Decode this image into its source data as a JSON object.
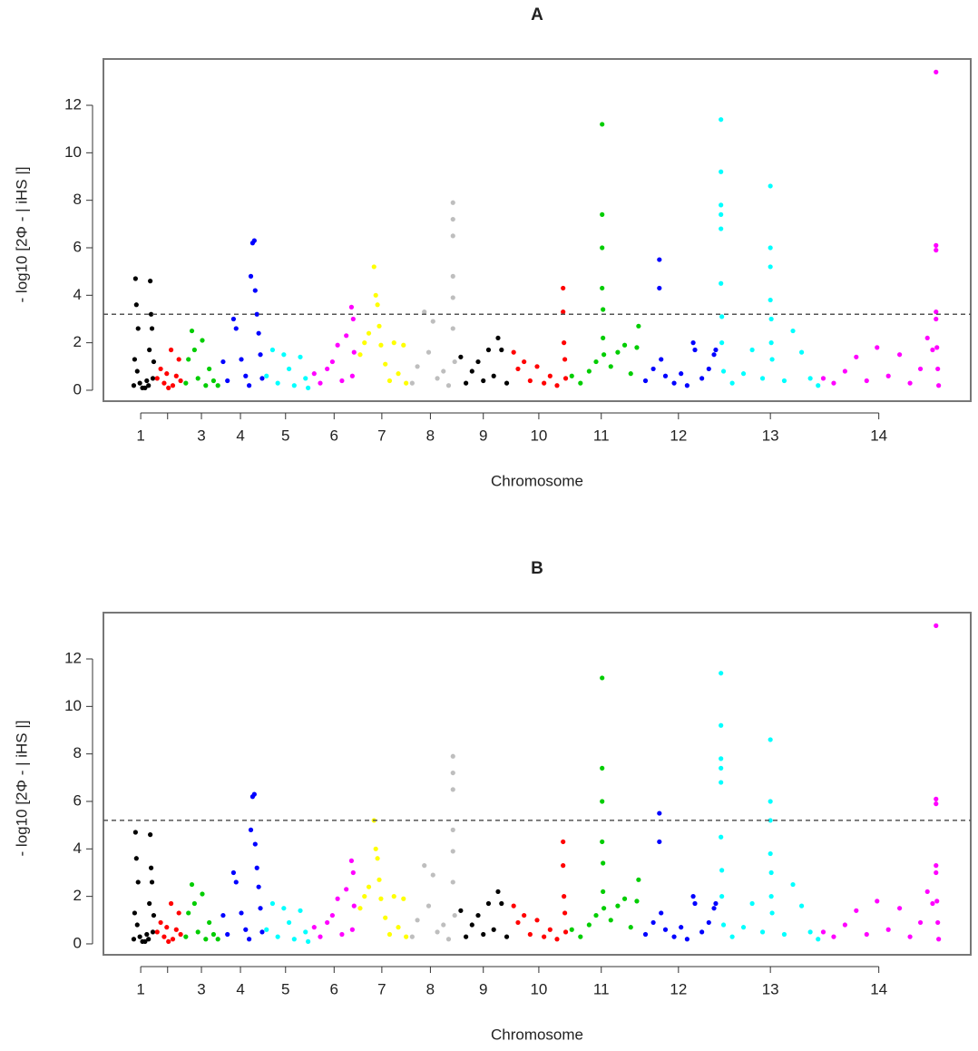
{
  "chart_data": [
    {
      "type": "scatter",
      "title": "A",
      "xlabel": "Chromosome",
      "ylabel": "- log10 [2Φ - | iHS |]",
      "xlim": [
        0,
        100
      ],
      "ylim": [
        -0.46,
        13.95
      ],
      "yticks": [
        0,
        2,
        4,
        6,
        8,
        10,
        12
      ],
      "threshold": 3.2,
      "xticks": [
        {
          "value": 4.3,
          "label": "1"
        },
        {
          "value": 7.4,
          "label": null
        },
        {
          "value": 11.3,
          "label": "3"
        },
        {
          "value": 15.8,
          "label": "4"
        },
        {
          "value": 21.0,
          "label": "5"
        },
        {
          "value": 26.6,
          "label": "6"
        },
        {
          "value": 32.1,
          "label": "7"
        },
        {
          "value": 37.7,
          "label": "8"
        },
        {
          "value": 43.8,
          "label": "9"
        },
        {
          "value": 50.2,
          "label": "10"
        },
        {
          "value": 57.4,
          "label": "11"
        },
        {
          "value": 66.3,
          "label": "12"
        },
        {
          "value": 76.9,
          "label": "13"
        },
        {
          "value": 89.4,
          "label": "14"
        }
      ],
      "series": [
        {
          "color": "#000000",
          "x": [
            3.5,
            3.6,
            3.7,
            3.8,
            3.9,
            4.0,
            4.2,
            4.5,
            5.0,
            5.3,
            5.4,
            5.5,
            5.6,
            5.7,
            5.8,
            5.2,
            4.8
          ],
          "values": [
            0.2,
            1.3,
            4.7,
            3.6,
            0.8,
            2.6,
            0.3,
            0.1,
            0.4,
            1.7,
            4.6,
            3.2,
            2.6,
            0.5,
            1.2,
            0.2,
            0.1
          ]
        },
        {
          "color": "#ff0000",
          "x": [
            6.2,
            6.6,
            7.0,
            7.3,
            7.8,
            8.0,
            8.4,
            8.7,
            8.9,
            7.5
          ],
          "values": [
            0.5,
            0.9,
            0.3,
            0.7,
            1.7,
            0.2,
            0.6,
            1.3,
            0.4,
            0.1
          ]
        },
        {
          "color": "#00cd00",
          "x": [
            9.5,
            9.8,
            10.2,
            10.5,
            10.9,
            11.4,
            11.8,
            12.2,
            12.7,
            13.2
          ],
          "values": [
            0.3,
            1.3,
            2.5,
            1.7,
            0.5,
            2.1,
            0.2,
            0.9,
            0.4,
            0.2
          ]
        },
        {
          "color": "#0000ff",
          "x": [
            13.8,
            14.3,
            15.0,
            15.3,
            15.9,
            16.4,
            17.0,
            17.2,
            17.4,
            17.5,
            17.7,
            17.9,
            18.1,
            18.3,
            16.8
          ],
          "values": [
            1.2,
            0.4,
            3.0,
            2.6,
            1.3,
            0.6,
            4.8,
            6.2,
            6.3,
            4.2,
            3.2,
            2.4,
            1.5,
            0.5,
            0.2
          ]
        },
        {
          "color": "#00ffff",
          "x": [
            18.8,
            19.5,
            20.1,
            20.8,
            21.4,
            22.0,
            22.7,
            23.3,
            23.6
          ],
          "values": [
            0.6,
            1.7,
            0.3,
            1.5,
            0.9,
            0.2,
            1.4,
            0.5,
            0.1
          ]
        },
        {
          "color": "#ff00ff",
          "x": [
            24.3,
            25.0,
            25.8,
            26.4,
            27.0,
            27.5,
            28.0,
            28.6,
            28.8,
            28.9,
            28.7
          ],
          "values": [
            0.7,
            0.3,
            0.9,
            1.2,
            1.9,
            0.4,
            2.3,
            3.5,
            3.0,
            1.6,
            0.6
          ]
        },
        {
          "color": "#ffff00",
          "x": [
            29.6,
            30.1,
            30.6,
            31.2,
            31.4,
            31.6,
            31.8,
            32.0,
            32.5,
            33.0,
            33.5,
            34.0,
            34.6,
            34.9
          ],
          "values": [
            1.5,
            2.0,
            2.4,
            5.2,
            4.0,
            3.6,
            2.7,
            1.9,
            1.1,
            0.4,
            2.0,
            0.7,
            1.9,
            0.3
          ]
        },
        {
          "color": "#bebebe",
          "x": [
            35.6,
            36.2,
            37.0,
            37.5,
            38.0,
            38.5,
            39.2,
            40.3,
            40.3,
            40.3,
            40.3,
            40.3,
            40.3,
            40.5,
            39.8
          ],
          "values": [
            0.3,
            1.0,
            3.3,
            1.6,
            2.9,
            0.5,
            0.8,
            7.9,
            7.2,
            6.5,
            4.8,
            3.9,
            2.6,
            1.2,
            0.2
          ]
        },
        {
          "color": "#000000",
          "x": [
            41.2,
            41.8,
            42.5,
            43.2,
            43.8,
            44.4,
            45.0,
            45.5,
            45.9,
            46.5
          ],
          "values": [
            1.4,
            0.3,
            0.8,
            1.2,
            0.4,
            1.7,
            0.6,
            2.2,
            1.7,
            0.3
          ]
        },
        {
          "color": "#ff0000",
          "x": [
            47.3,
            47.8,
            48.5,
            49.2,
            50.0,
            50.8,
            51.5,
            52.3,
            53.0,
            53.0,
            53.1,
            53.2,
            53.3
          ],
          "values": [
            1.6,
            0.9,
            1.2,
            0.4,
            1.0,
            0.3,
            0.6,
            0.2,
            4.3,
            3.3,
            2.0,
            1.3,
            0.5
          ]
        },
        {
          "color": "#00cd00",
          "x": [
            54.0,
            55.0,
            56.0,
            56.8,
            57.5,
            57.5,
            57.5,
            57.5,
            57.6,
            57.6,
            57.7,
            58.5,
            59.3,
            60.1,
            60.8,
            61.7,
            61.5
          ],
          "values": [
            0.6,
            0.3,
            0.8,
            1.2,
            11.2,
            7.4,
            6.0,
            4.3,
            3.4,
            2.2,
            1.5,
            1.0,
            1.6,
            1.9,
            0.7,
            2.7,
            1.8
          ]
        },
        {
          "color": "#0000ff",
          "x": [
            62.5,
            63.4,
            64.1,
            64.1,
            64.3,
            64.8,
            65.8,
            66.6,
            67.3,
            68.0,
            68.2,
            69.0,
            69.8,
            70.6,
            70.4
          ],
          "values": [
            0.4,
            0.9,
            5.5,
            4.3,
            1.3,
            0.6,
            0.3,
            0.7,
            0.2,
            2.0,
            1.7,
            0.5,
            0.9,
            1.7,
            1.5
          ]
        },
        {
          "color": "#00ffff",
          "x": [
            71.2,
            71.2,
            71.2,
            71.2,
            71.2,
            71.2,
            71.3,
            71.3,
            71.5,
            72.5,
            73.8,
            74.8,
            76.0,
            76.9,
            76.9,
            76.9,
            76.9,
            77.0,
            77.0,
            77.1,
            78.5,
            79.5,
            80.5,
            81.5,
            82.4
          ],
          "values": [
            11.4,
            9.2,
            7.8,
            7.4,
            6.8,
            4.5,
            3.1,
            2.0,
            0.8,
            0.3,
            0.7,
            1.7,
            0.5,
            8.6,
            6.0,
            5.2,
            3.8,
            3.0,
            2.0,
            1.3,
            0.4,
            2.5,
            1.6,
            0.5,
            0.2
          ]
        },
        {
          "color": "#ff00ff",
          "x": [
            83.0,
            84.2,
            85.5,
            86.8,
            88.0,
            89.2,
            90.5,
            91.8,
            93.0,
            94.2,
            95.0,
            95.6,
            96.0,
            96.0,
            96.0,
            96.0,
            96.0,
            96.1,
            96.2,
            96.3
          ],
          "values": [
            0.5,
            0.3,
            0.8,
            1.4,
            0.4,
            1.8,
            0.6,
            1.5,
            0.3,
            0.9,
            2.2,
            1.7,
            13.4,
            6.1,
            5.9,
            3.3,
            3.0,
            1.8,
            0.9,
            0.2
          ]
        }
      ]
    },
    {
      "type": "scatter",
      "title": "B",
      "xlabel": "Chromosome",
      "ylabel": "- log10 [2Φ - | iHS |]",
      "xlim": [
        0,
        100
      ],
      "ylim": [
        -0.46,
        13.95
      ],
      "yticks": [
        0,
        2,
        4,
        6,
        8,
        10,
        12
      ],
      "threshold": 5.2,
      "xticks": [
        {
          "value": 4.3,
          "label": "1"
        },
        {
          "value": 7.4,
          "label": null
        },
        {
          "value": 11.3,
          "label": "3"
        },
        {
          "value": 15.8,
          "label": "4"
        },
        {
          "value": 21.0,
          "label": "5"
        },
        {
          "value": 26.6,
          "label": "6"
        },
        {
          "value": 32.1,
          "label": "7"
        },
        {
          "value": 37.7,
          "label": "8"
        },
        {
          "value": 43.8,
          "label": "9"
        },
        {
          "value": 50.2,
          "label": "10"
        },
        {
          "value": 57.4,
          "label": "11"
        },
        {
          "value": 66.3,
          "label": "12"
        },
        {
          "value": 76.9,
          "label": "13"
        },
        {
          "value": 89.4,
          "label": "14"
        }
      ],
      "series": [
        {
          "color": "#000000",
          "x": [
            3.5,
            3.6,
            3.7,
            3.8,
            3.9,
            4.0,
            4.2,
            4.5,
            5.0,
            5.3,
            5.4,
            5.5,
            5.6,
            5.7,
            5.8,
            5.2,
            4.8
          ],
          "values": [
            0.2,
            1.3,
            4.7,
            3.6,
            0.8,
            2.6,
            0.3,
            0.1,
            0.4,
            1.7,
            4.6,
            3.2,
            2.6,
            0.5,
            1.2,
            0.2,
            0.1
          ]
        },
        {
          "color": "#ff0000",
          "x": [
            6.2,
            6.6,
            7.0,
            7.3,
            7.8,
            8.0,
            8.4,
            8.7,
            8.9,
            7.5
          ],
          "values": [
            0.5,
            0.9,
            0.3,
            0.7,
            1.7,
            0.2,
            0.6,
            1.3,
            0.4,
            0.1
          ]
        },
        {
          "color": "#00cd00",
          "x": [
            9.5,
            9.8,
            10.2,
            10.5,
            10.9,
            11.4,
            11.8,
            12.2,
            12.7,
            13.2
          ],
          "values": [
            0.3,
            1.3,
            2.5,
            1.7,
            0.5,
            2.1,
            0.2,
            0.9,
            0.4,
            0.2
          ]
        },
        {
          "color": "#0000ff",
          "x": [
            13.8,
            14.3,
            15.0,
            15.3,
            15.9,
            16.4,
            17.0,
            17.2,
            17.4,
            17.5,
            17.7,
            17.9,
            18.1,
            18.3,
            16.8
          ],
          "values": [
            1.2,
            0.4,
            3.0,
            2.6,
            1.3,
            0.6,
            4.8,
            6.2,
            6.3,
            4.2,
            3.2,
            2.4,
            1.5,
            0.5,
            0.2
          ]
        },
        {
          "color": "#00ffff",
          "x": [
            18.8,
            19.5,
            20.1,
            20.8,
            21.4,
            22.0,
            22.7,
            23.3,
            23.6
          ],
          "values": [
            0.6,
            1.7,
            0.3,
            1.5,
            0.9,
            0.2,
            1.4,
            0.5,
            0.1
          ]
        },
        {
          "color": "#ff00ff",
          "x": [
            24.3,
            25.0,
            25.8,
            26.4,
            27.0,
            27.5,
            28.0,
            28.6,
            28.8,
            28.9,
            28.7
          ],
          "values": [
            0.7,
            0.3,
            0.9,
            1.2,
            1.9,
            0.4,
            2.3,
            3.5,
            3.0,
            1.6,
            0.6
          ]
        },
        {
          "color": "#ffff00",
          "x": [
            29.6,
            30.1,
            30.6,
            31.2,
            31.4,
            31.6,
            31.8,
            32.0,
            32.5,
            33.0,
            33.5,
            34.0,
            34.6,
            34.9
          ],
          "values": [
            1.5,
            2.0,
            2.4,
            5.2,
            4.0,
            3.6,
            2.7,
            1.9,
            1.1,
            0.4,
            2.0,
            0.7,
            1.9,
            0.3
          ]
        },
        {
          "color": "#bebebe",
          "x": [
            35.6,
            36.2,
            37.0,
            37.5,
            38.0,
            38.5,
            39.2,
            40.3,
            40.3,
            40.3,
            40.3,
            40.3,
            40.3,
            40.5,
            39.8
          ],
          "values": [
            0.3,
            1.0,
            3.3,
            1.6,
            2.9,
            0.5,
            0.8,
            7.9,
            7.2,
            6.5,
            4.8,
            3.9,
            2.6,
            1.2,
            0.2
          ]
        },
        {
          "color": "#000000",
          "x": [
            41.2,
            41.8,
            42.5,
            43.2,
            43.8,
            44.4,
            45.0,
            45.5,
            45.9,
            46.5
          ],
          "values": [
            1.4,
            0.3,
            0.8,
            1.2,
            0.4,
            1.7,
            0.6,
            2.2,
            1.7,
            0.3
          ]
        },
        {
          "color": "#ff0000",
          "x": [
            47.3,
            47.8,
            48.5,
            49.2,
            50.0,
            50.8,
            51.5,
            52.3,
            53.0,
            53.0,
            53.1,
            53.2,
            53.3
          ],
          "values": [
            1.6,
            0.9,
            1.2,
            0.4,
            1.0,
            0.3,
            0.6,
            0.2,
            4.3,
            3.3,
            2.0,
            1.3,
            0.5
          ]
        },
        {
          "color": "#00cd00",
          "x": [
            54.0,
            55.0,
            56.0,
            56.8,
            57.5,
            57.5,
            57.5,
            57.5,
            57.6,
            57.6,
            57.7,
            58.5,
            59.3,
            60.1,
            60.8,
            61.7,
            61.5
          ],
          "values": [
            0.6,
            0.3,
            0.8,
            1.2,
            11.2,
            7.4,
            6.0,
            4.3,
            3.4,
            2.2,
            1.5,
            1.0,
            1.6,
            1.9,
            0.7,
            2.7,
            1.8
          ]
        },
        {
          "color": "#0000ff",
          "x": [
            62.5,
            63.4,
            64.1,
            64.1,
            64.3,
            64.8,
            65.8,
            66.6,
            67.3,
            68.0,
            68.2,
            69.0,
            69.8,
            70.6,
            70.4
          ],
          "values": [
            0.4,
            0.9,
            5.5,
            4.3,
            1.3,
            0.6,
            0.3,
            0.7,
            0.2,
            2.0,
            1.7,
            0.5,
            0.9,
            1.7,
            1.5
          ]
        },
        {
          "color": "#00ffff",
          "x": [
            71.2,
            71.2,
            71.2,
            71.2,
            71.2,
            71.2,
            71.3,
            71.3,
            71.5,
            72.5,
            73.8,
            74.8,
            76.0,
            76.9,
            76.9,
            76.9,
            76.9,
            77.0,
            77.0,
            77.1,
            78.5,
            79.5,
            80.5,
            81.5,
            82.4
          ],
          "values": [
            11.4,
            9.2,
            7.8,
            7.4,
            6.8,
            4.5,
            3.1,
            2.0,
            0.8,
            0.3,
            0.7,
            1.7,
            0.5,
            8.6,
            6.0,
            5.2,
            3.8,
            3.0,
            2.0,
            1.3,
            0.4,
            2.5,
            1.6,
            0.5,
            0.2
          ]
        },
        {
          "color": "#ff00ff",
          "x": [
            83.0,
            84.2,
            85.5,
            86.8,
            88.0,
            89.2,
            90.5,
            91.8,
            93.0,
            94.2,
            95.0,
            95.6,
            96.0,
            96.0,
            96.0,
            96.0,
            96.0,
            96.1,
            96.2,
            96.3
          ],
          "values": [
            0.5,
            0.3,
            0.8,
            1.4,
            0.4,
            1.8,
            0.6,
            1.5,
            0.3,
            0.9,
            2.2,
            1.7,
            13.4,
            6.1,
            5.9,
            3.3,
            3.0,
            1.8,
            0.9,
            0.2
          ]
        }
      ]
    }
  ]
}
